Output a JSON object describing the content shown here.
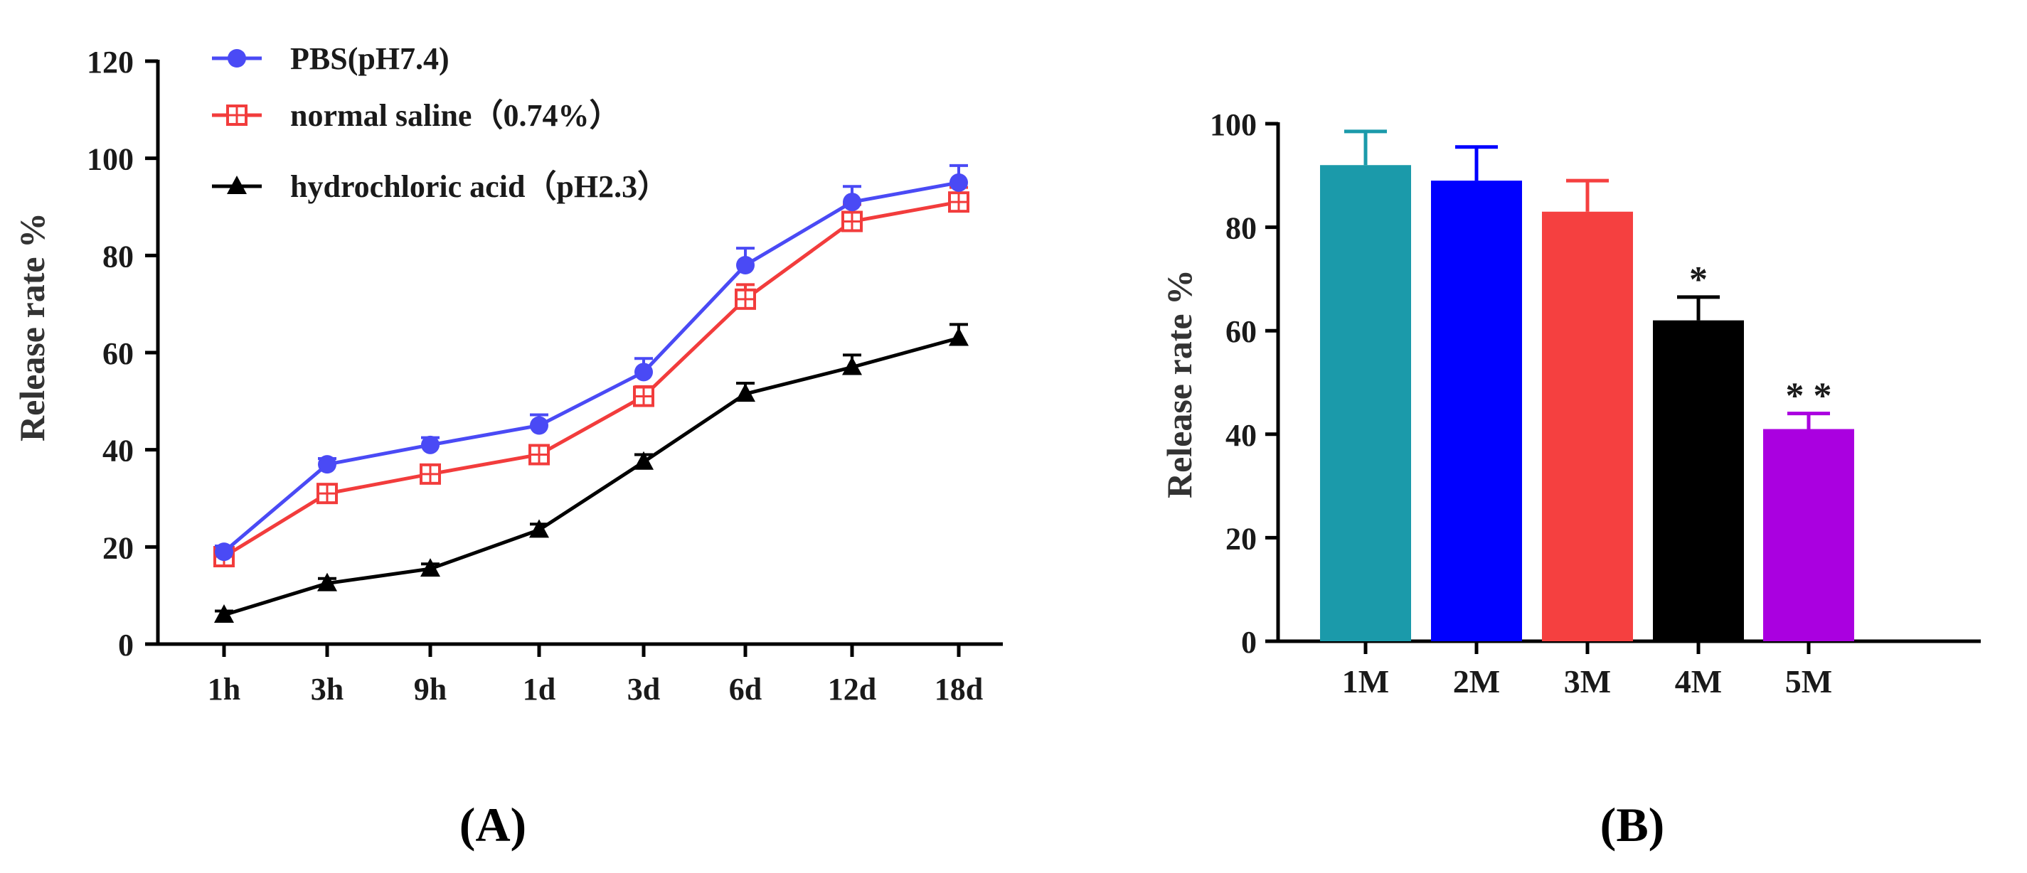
{
  "chart_data": [
    {
      "type": "line",
      "panel_label": "(A)",
      "ylabel": "Release rate %",
      "xlabel": "",
      "categories": [
        "1h",
        "3h",
        "9h",
        "1d",
        "3d",
        "6d",
        "12d",
        "18d"
      ],
      "ylim": [
        0,
        120
      ],
      "yticks": [
        0,
        20,
        40,
        60,
        80,
        100,
        120
      ],
      "grid": false,
      "legend_position": "top-left",
      "series": [
        {
          "name": "PBS(pH7.4)",
          "color": "#4a4af5",
          "marker": "circle",
          "values": [
            19,
            37,
            41,
            45,
            56,
            78,
            91,
            95
          ],
          "errors": [
            1.2,
            1.2,
            1.5,
            2.2,
            2.8,
            3.5,
            3.2,
            3.5
          ]
        },
        {
          "name": "normal saline（0.74%）",
          "color": "#f23c3c",
          "marker": "square-open",
          "values": [
            18,
            31,
            35,
            39,
            51,
            71,
            87,
            91
          ],
          "errors": [
            1.0,
            1.2,
            1.2,
            1.5,
            2.0,
            3.0,
            3.5,
            3.0
          ]
        },
        {
          "name": "hydrochloric acid（pH2.3）",
          "color": "#000000",
          "marker": "triangle",
          "values": [
            6,
            12.5,
            15.5,
            23.5,
            37.5,
            51.5,
            57,
            63
          ],
          "errors": [
            0.8,
            1.0,
            1.0,
            1.2,
            1.5,
            2.2,
            2.5,
            2.8
          ]
        }
      ]
    },
    {
      "type": "bar",
      "panel_label": "(B)",
      "ylabel": "Release rate %",
      "xlabel": "",
      "categories": [
        "1M",
        "2M",
        "3M",
        "4M",
        "5M"
      ],
      "ylim": [
        0,
        100
      ],
      "yticks": [
        0,
        20,
        40,
        60,
        80,
        100
      ],
      "grid": false,
      "values": [
        92,
        89,
        83,
        62,
        41
      ],
      "errors": [
        6.5,
        6.5,
        6,
        4.5,
        3
      ],
      "colors": [
        "#1b9aaa",
        "#0000ff",
        "#f54040",
        "#000000",
        "#aa00e0"
      ],
      "annotations": [
        "",
        "",
        "",
        "*",
        "* *"
      ]
    }
  ]
}
